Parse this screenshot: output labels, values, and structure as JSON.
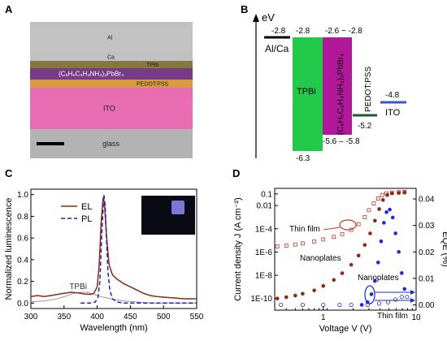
{
  "chart_data": [
    {
      "panel": "A",
      "type": "image",
      "layers": [
        {
          "label": "Al",
          "color": "#d9d9d9"
        },
        {
          "label": "Ca",
          "color": "#c8c8c8"
        },
        {
          "label": "TPBi",
          "color": "#8a7a40"
        },
        {
          "label": "(C₆H₅C₂H₄NH₃)₂PbBr₄",
          "color": "#7a3c8c"
        },
        {
          "label": "PEDOT:PSS",
          "color": "#e0a040"
        },
        {
          "label": "ITO",
          "color": "#f06fb8"
        },
        {
          "label": "glass",
          "color": "#b8b8b8"
        }
      ]
    },
    {
      "panel": "B",
      "type": "energy-diagram",
      "ylabel": "eV",
      "items": [
        {
          "label": "Al/Ca",
          "levels": [
            "-2.8"
          ],
          "color": "#000000"
        },
        {
          "label": "TPBi",
          "levels": [
            "-2.8",
            "-6.3"
          ],
          "color": "#22c94a"
        },
        {
          "label": "(C₆H₅C₂H₄NH₃)₂PbBr₄",
          "levels": [
            "-2.6",
            "-2.8",
            "-5.6",
            "-5.8"
          ],
          "color": "#b2189a"
        },
        {
          "label": "PEDOT:PSS",
          "levels": [
            "-5.2"
          ],
          "color": "#1a5c2c"
        },
        {
          "label": "ITO",
          "levels": [
            "-4.8"
          ],
          "color": "#3357d6"
        }
      ],
      "sep_top": "~",
      "sep_bottom": "–"
    },
    {
      "panel": "C",
      "type": "line",
      "xlabel": "Wavelength (nm)",
      "ylabel": "Normalized luminescence",
      "xlim": [
        300,
        550
      ],
      "ylim": [
        -0.05,
        1.05
      ],
      "xticks": [
        300,
        350,
        400,
        450,
        500,
        550
      ],
      "yticks": [
        0.0,
        0.2,
        0.4,
        0.6,
        0.8,
        1.0
      ],
      "annotation": "TPBi",
      "series": [
        {
          "name": "EL",
          "color": "#8b2a12",
          "style": "solid",
          "points": [
            [
              300,
              0.06
            ],
            [
              310,
              0.07
            ],
            [
              320,
              0.06
            ],
            [
              330,
              0.07
            ],
            [
              340,
              0.08
            ],
            [
              350,
              0.09
            ],
            [
              360,
              0.1
            ],
            [
              370,
              0.095
            ],
            [
              380,
              0.085
            ],
            [
              390,
              0.08
            ],
            [
              395,
              0.09
            ],
            [
              400,
              0.15
            ],
            [
              403,
              0.35
            ],
            [
              406,
              0.75
            ],
            [
              409,
              0.97
            ],
            [
              411,
              0.92
            ],
            [
              414,
              0.62
            ],
            [
              418,
              0.35
            ],
            [
              423,
              0.26
            ],
            [
              430,
              0.22
            ],
            [
              440,
              0.18
            ],
            [
              450,
              0.15
            ],
            [
              460,
              0.12
            ],
            [
              470,
              0.09
            ],
            [
              480,
              0.07
            ],
            [
              490,
              0.06
            ],
            [
              500,
              0.055
            ],
            [
              510,
              0.05
            ],
            [
              520,
              0.045
            ],
            [
              530,
              0.04
            ],
            [
              540,
              0.04
            ],
            [
              550,
              0.04
            ]
          ]
        },
        {
          "name": "PL",
          "color": "#2222aa",
          "style": "dashed",
          "points": [
            [
              375,
              0.0
            ],
            [
              385,
              0.0
            ],
            [
              392,
              0.0
            ],
            [
              397,
              0.01
            ],
            [
              401,
              0.05
            ],
            [
              404,
              0.2
            ],
            [
              407,
              0.65
            ],
            [
              410,
              1.0
            ],
            [
              412,
              0.9
            ],
            [
              414,
              0.6
            ],
            [
              416,
              0.3
            ],
            [
              419,
              0.12
            ],
            [
              423,
              0.04
            ],
            [
              430,
              0.01
            ],
            [
              440,
              0.0
            ],
            [
              460,
              0.0
            ],
            [
              480,
              0.0
            ],
            [
              500,
              0.0
            ],
            [
              520,
              0.0
            ],
            [
              540,
              0.0
            ],
            [
              550,
              0.0
            ]
          ]
        },
        {
          "name": "",
          "color": "#999999",
          "style": "solid",
          "points": [
            [
              300,
              0.01
            ],
            [
              320,
              0.02
            ],
            [
              340,
              0.04
            ],
            [
              355,
              0.07
            ],
            [
              365,
              0.09
            ],
            [
              375,
              0.1
            ],
            [
              385,
              0.1
            ],
            [
              395,
              0.08
            ],
            [
              405,
              0.06
            ],
            [
              420,
              0.04
            ],
            [
              440,
              0.02
            ],
            [
              460,
              0.01
            ],
            [
              480,
              0.0
            ],
            [
              500,
              0.0
            ],
            [
              550,
              0.0
            ]
          ]
        }
      ]
    },
    {
      "panel": "D",
      "type": "scatter",
      "xlabel": "Voltage V (V)",
      "ylabel": "Current density J (A cm⁻²)",
      "y2label": "EQE (%)",
      "x_scale": "log",
      "y_scale": "log",
      "xlim": [
        0.3,
        10
      ],
      "ylim": [
        1e-11,
        0.3
      ],
      "y2lim": [
        -0.002,
        0.044
      ],
      "xticks": [
        "1",
        "10"
      ],
      "yticks": [
        "1E-10",
        "1E-8",
        "1E-6",
        "1E-4",
        "0.01",
        "0.1"
      ],
      "y2ticks": [
        "0.00",
        "0.01",
        "0.02",
        "0.03",
        "0.04"
      ],
      "annotations": [
        "Thin film",
        "Nanoplates",
        "Nanoplates",
        "Thin film"
      ],
      "series": [
        {
          "name": "Thin film J",
          "axis": "left",
          "color": "#c0392b",
          "marker": "open-square",
          "points": [
            [
              0.32,
              3e-06
            ],
            [
              0.4,
              3.6e-06
            ],
            [
              0.5,
              4.4e-06
            ],
            [
              0.6,
              5.5e-06
            ],
            [
              0.8,
              8e-06
            ],
            [
              1.0,
              1.2e-05
            ],
            [
              1.3,
              2e-05
            ],
            [
              1.6,
              3.5e-05
            ],
            [
              2.0,
              8e-05
            ],
            [
              2.4,
              0.00025
            ],
            [
              2.8,
              0.001
            ],
            [
              3.1,
              0.004
            ],
            [
              3.5,
              0.015
            ],
            [
              3.9,
              0.04
            ],
            [
              4.3,
              0.08
            ],
            [
              4.8,
              0.11
            ],
            [
              5.5,
              0.13
            ],
            [
              6.5,
              0.14
            ],
            [
              7.5,
              0.15
            ]
          ]
        },
        {
          "name": "Nanoplates J",
          "axis": "left",
          "color": "#8b2a12",
          "marker": "filled-circle",
          "points": [
            [
              0.32,
              1e-10
            ],
            [
              0.4,
              1.3e-10
            ],
            [
              0.5,
              1.8e-10
            ],
            [
              0.6,
              2.6e-10
            ],
            [
              0.8,
              5e-10
            ],
            [
              1.0,
              1.2e-09
            ],
            [
              1.3,
              4e-09
            ],
            [
              1.6,
              1.5e-08
            ],
            [
              2.0,
              8e-08
            ],
            [
              2.4,
              5e-07
            ],
            [
              2.8,
              4e-06
            ],
            [
              3.2,
              4e-05
            ],
            [
              3.6,
              0.0005
            ],
            [
              4.0,
              0.005
            ],
            [
              4.4,
              0.03
            ],
            [
              4.9,
              0.08
            ],
            [
              5.5,
              0.11
            ],
            [
              6.5,
              0.12
            ],
            [
              7.5,
              0.13
            ]
          ]
        },
        {
          "name": "Nanoplates EQE",
          "axis": "right",
          "color": "#1a2ad6",
          "marker": "filled-circle",
          "points": [
            [
              2.6,
              0.0
            ],
            [
              3.0,
              0.001
            ],
            [
              3.3,
              0.004
            ],
            [
              3.6,
              0.009
            ],
            [
              3.9,
              0.016
            ],
            [
              4.2,
              0.024
            ],
            [
              4.5,
              0.031
            ],
            [
              4.8,
              0.035
            ],
            [
              5.2,
              0.036
            ],
            [
              5.6,
              0.033
            ],
            [
              6.0,
              0.027
            ],
            [
              6.5,
              0.02
            ],
            [
              7.0,
              0.012
            ],
            [
              7.5,
              0.006
            ]
          ]
        },
        {
          "name": "Thin film EQE",
          "axis": "right",
          "color": "#1a2ad6",
          "marker": "open-circle",
          "points": [
            [
              0.35,
              0.0
            ],
            [
              0.6,
              0.0
            ],
            [
              1.0,
              0.0
            ],
            [
              1.5,
              0.0
            ],
            [
              2.0,
              0.0
            ],
            [
              3.0,
              0.0
            ],
            [
              4.0,
              0.0005
            ],
            [
              5.0,
              0.001
            ],
            [
              6.0,
              0.002
            ],
            [
              7.0,
              0.003
            ],
            [
              8.0,
              0.003
            ]
          ]
        }
      ]
    }
  ]
}
